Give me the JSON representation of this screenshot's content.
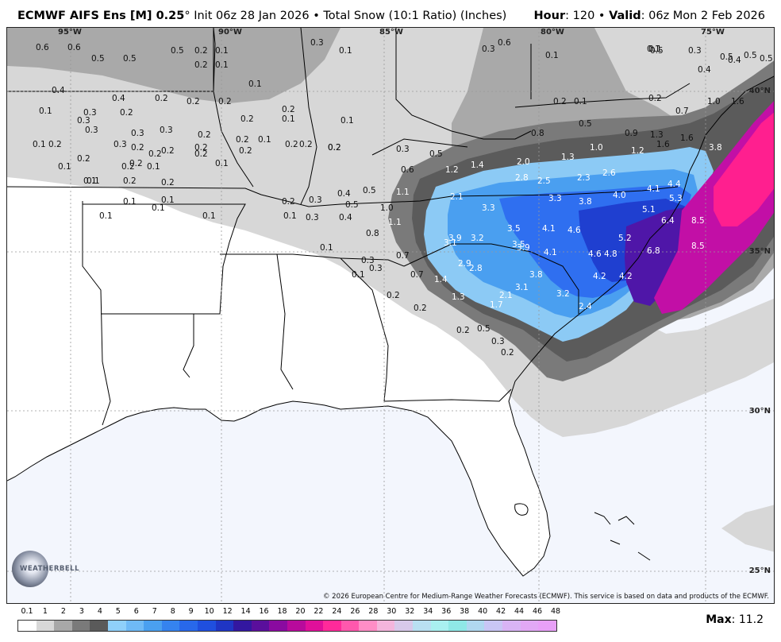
{
  "header": {
    "model": "ECMWF AIFS Ens [M] 0.25",
    "degree": "°",
    "init": "Init 06z 28 Jan 2026",
    "bullet": "•",
    "product": "Total Snow (10:1 Ratio) (Inches)",
    "hour_label": "Hour",
    "hour_value": ": 120",
    "valid_label": "Valid",
    "valid_value": ": 06z Mon 2 Feb 2026"
  },
  "map": {
    "lon_labels": [
      "95°W",
      "90°W",
      "85°W",
      "80°W",
      "75°W"
    ],
    "lat_labels": [
      "40°N",
      "35°N",
      "30°N",
      "25°N"
    ],
    "copyright": "© 2026 European Centre for Medium-Range Weather Forecasts (ECMWF). This service is based on data and products of the ECMWF.",
    "logo_text": "WEATHERBELL",
    "colors": {
      "ocean": "#f3f6fd",
      "light_gray": "#d7d7d7",
      "mid_gray": "#a9a9a9",
      "dark_gray": "#7a7a7a",
      "darker_gray": "#5b5b5b",
      "light_blue": "#8ccaf5",
      "mid_blue": "#4a9ff0",
      "blue": "#2f6ff0",
      "dark_blue": "#1f3fd0",
      "purple": "#4f16a8",
      "magenta": "#c20fa6",
      "pink": "#ff1f8f"
    },
    "values": [
      "0.6",
      "0.6",
      "0.5",
      "0.5",
      "0.5",
      "0.2",
      "0.2",
      "0.1",
      "0.1",
      "0.3",
      "0.1",
      "0.6",
      "0.3",
      "0.1",
      "0.5",
      "0.4",
      "0.3",
      "0.5",
      "0.5",
      "0.5",
      "0.1",
      "0.1",
      "0.4",
      "0.4",
      "0.3",
      "0.2",
      "0.2",
      "0.2",
      "0.1",
      "0.2",
      "0.1",
      "0.2",
      "0.2",
      "0.1",
      "0.3",
      "0.2",
      "0.1",
      "0.2",
      "1.0",
      "1.6",
      "0.4",
      "0.7",
      "0.3",
      "0.3",
      "0.3",
      "0.2",
      "0.2",
      "0.2",
      "0.1",
      "0.2",
      "0.2",
      "0.2",
      "0.1",
      "0.8",
      "0.5",
      "0.9",
      "1.3",
      "0.1",
      "0.2",
      "0.3",
      "0.2",
      "0.2",
      "0.2",
      "0.2",
      "0.1",
      "0.2",
      "0.3",
      "0.5",
      "1.3",
      "1.0",
      "1.2",
      "1.6",
      "1.6",
      "0.1",
      "0.2",
      "0.2",
      "0.1",
      "0.2",
      "0.1",
      "0.6",
      "1.2",
      "1.4",
      "2.0",
      "3.8",
      "0.1",
      "0.2",
      "0.2",
      "0.2",
      "0.1",
      "0.1",
      "0.2",
      "0.3",
      "0.4",
      "0.5",
      "2.8",
      "2.5",
      "2.3",
      "2.6",
      "4.1",
      "4.4",
      "0.1",
      "0.1",
      "0.1",
      "0.3",
      "0.4",
      "0.5",
      "1.1",
      "1.0",
      "2.1",
      "3.3",
      "3.8",
      "4.0",
      "5.1",
      "5.3",
      "6.4",
      "8.5",
      "0.1",
      "0.8",
      "1.1",
      "3.3",
      "3.5",
      "4.1",
      "4.6",
      "0.1",
      "0.7",
      "3.9",
      "3.2",
      "3.5",
      "5.2",
      "6.8",
      "8.5",
      "3.1",
      "3.9",
      "4.1",
      "4.6",
      "4.8",
      "0.3",
      "0.3",
      "0.1",
      "2.9",
      "2.8",
      "3.8",
      "4.2",
      "4.2",
      "0.7",
      "1.4",
      "3.1",
      "0.2",
      "1.3",
      "1.7",
      "2.1",
      "3.2",
      "2.4",
      "0.2",
      "0.2",
      "0.5",
      "0.3",
      "0.2"
    ]
  },
  "legend": {
    "ticks": [
      "0.1",
      "1",
      "2",
      "3",
      "4",
      "5",
      "6",
      "7",
      "8",
      "9",
      "10",
      "12",
      "14",
      "16",
      "18",
      "20",
      "22",
      "24",
      "26",
      "28",
      "30",
      "32",
      "34",
      "36",
      "38",
      "40",
      "42",
      "44",
      "46",
      "48"
    ],
    "colors": [
      "#ffffff",
      "#d8d8d8",
      "#a8a8a8",
      "#7a7a7a",
      "#5a5a5a",
      "#8fd0fa",
      "#6fbaf6",
      "#4aa0f0",
      "#3583ef",
      "#2868ea",
      "#1f4fde",
      "#1f35c4",
      "#3317a0",
      "#5a0f9c",
      "#8a0aa0",
      "#b80a9c",
      "#e0109a",
      "#ff2a9a",
      "#ff58ad",
      "#ff8dc6",
      "#f4b5dc",
      "#d8c9ea",
      "#b9e0f2",
      "#a9f0f0",
      "#8fe8e6",
      "#b0d8f0",
      "#c9c6f5",
      "#d9b4f5",
      "#e2a8f5",
      "#e8a0f7"
    ],
    "max_label": "Max",
    "max_value": ": 11.2"
  }
}
